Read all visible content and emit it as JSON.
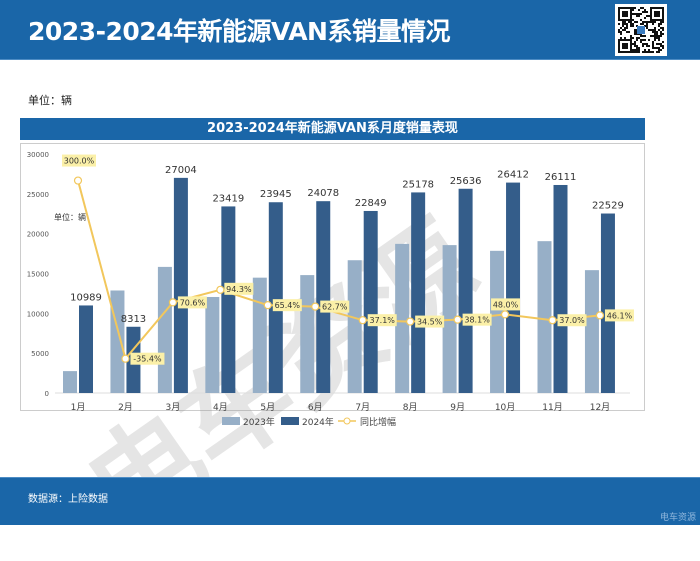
{
  "header": {
    "title": "2023-2024年新能源VAN系销量情况"
  },
  "unit_label": "单位：辆",
  "footer": {
    "source": "数据源：上险数据",
    "brand": "电车资源"
  },
  "watermark": "电车资源",
  "colors": {
    "header": "#1a66a8",
    "series2023": "#97afc7",
    "series2024": "#345d8a",
    "growth": "#f2c75c",
    "label_bg": "#fbf0a8"
  },
  "chart_data": {
    "type": "bar",
    "title": "2023-2024年新能源VAN系月度销量表现",
    "inner_unit": "单位：辆",
    "categories": [
      "1月",
      "2月",
      "3月",
      "4月",
      "5月",
      "6月",
      "7月",
      "8月",
      "9月",
      "10月",
      "11月",
      "12月"
    ],
    "ylim": [
      0,
      30000
    ],
    "yticks": [
      "0",
      "5000",
      "10000",
      "15000",
      "20000",
      "25000",
      "30000"
    ],
    "grid": false,
    "legend": "bottom",
    "series": [
      {
        "name": "2023年",
        "values": [
          2747,
          12868,
          15829,
          12053,
          14477,
          14799,
          16666,
          18720,
          18563,
          17846,
          19059,
          15420
        ]
      },
      {
        "name": "2024年",
        "values": [
          10989,
          8313,
          27004,
          23419,
          23945,
          24078,
          22849,
          25178,
          25636,
          26412,
          26111,
          22529
        ],
        "labels": [
          "10989",
          "8313",
          "27004",
          "23419",
          "23945",
          "24078",
          "22849",
          "25178",
          "25636",
          "26412",
          "26111",
          "22529"
        ]
      },
      {
        "name": "同比增幅",
        "type": "line",
        "secondary_axis": true,
        "ylim": [
          -100,
          350
        ],
        "values": [
          300.0,
          -35.4,
          70.6,
          94.3,
          65.4,
          62.7,
          37.1,
          34.5,
          38.1,
          48.0,
          37.0,
          46.1
        ],
        "labels": [
          "300.0%",
          "-35.4%",
          "70.6%",
          "94.3%",
          "65.4%",
          "62.7%",
          "37.1%",
          "34.5%",
          "38.1%",
          "48.0%",
          "37.0%",
          "46.1%"
        ]
      }
    ]
  }
}
